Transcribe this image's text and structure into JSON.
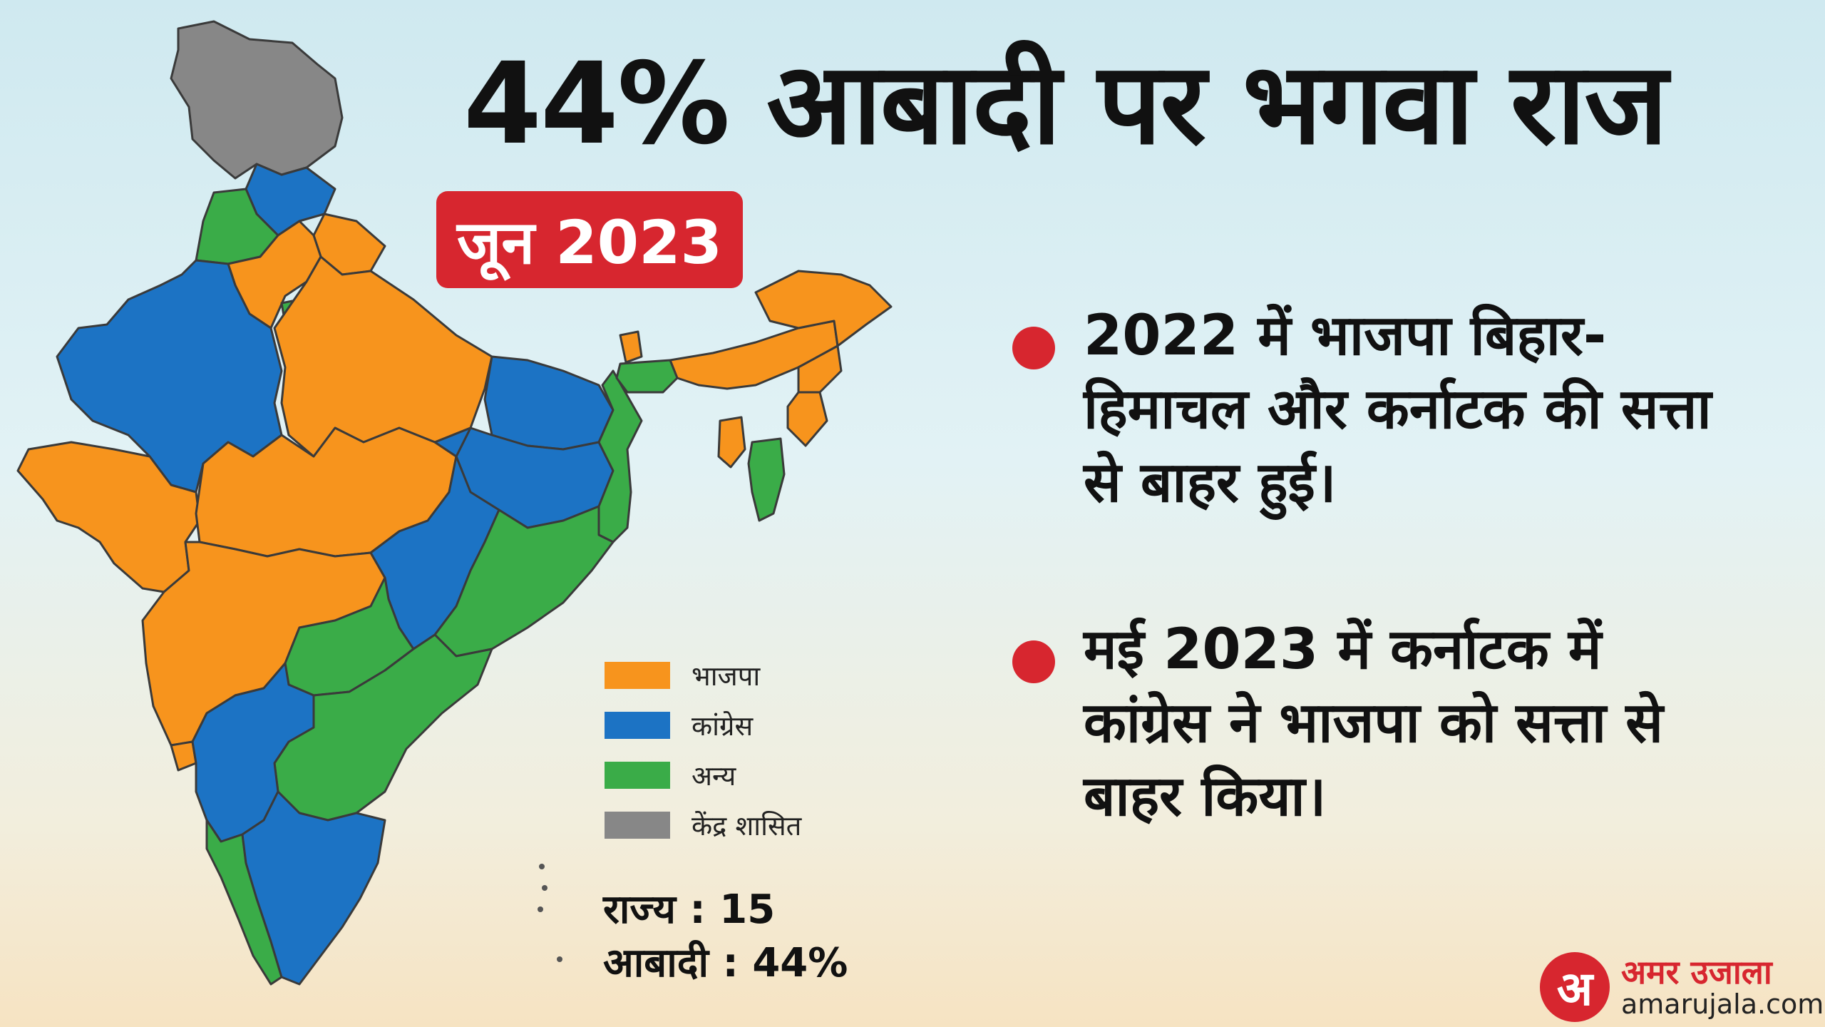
{
  "headline": "44% आबादी पर भगवा राज",
  "date_badge": "जून 2023",
  "bullets": [
    "2022 में भाजपा बिहार-हिमाचल और कर्नाटक की सत्ता से बाहर हुई।",
    "मई 2023 में कर्नाटक में कांग्रेस ने भाजपा को सत्ता से बाहर किया।"
  ],
  "legend": [
    {
      "label": "भाजपा",
      "color": "#f7941d"
    },
    {
      "label": "कांग्रेस",
      "color": "#1c73c4"
    },
    {
      "label": "अन्य",
      "color": "#3aac48"
    },
    {
      "label": "केंद्र शासित",
      "color": "#878787"
    }
  ],
  "stats": {
    "states": "राज्य : 15",
    "population": "आबादी : 44%"
  },
  "logo": {
    "mark": "अ",
    "name": "अमर उजाला",
    "url": "amarujala.com"
  },
  "colors": {
    "bjp": "#f7941d",
    "congress": "#1c73c4",
    "others": "#3aac48",
    "ut": "#878787",
    "accent": "#d7262f"
  }
}
